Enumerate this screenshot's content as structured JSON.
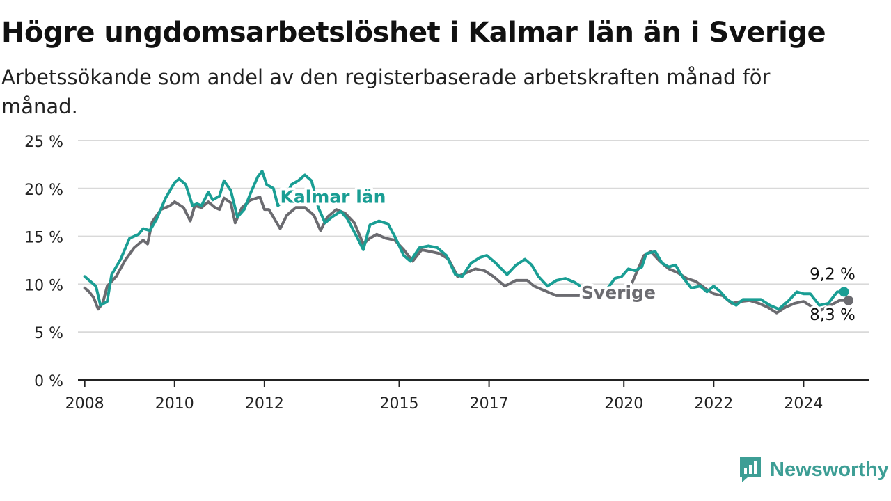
{
  "header": {
    "title": "Högre ungdomsarbetslöshet i Kalmar län än i Sverige",
    "subtitle": "Arbetssökande som andel av den registerbaserade arbetskraften månad för månad."
  },
  "brand": {
    "name": "Newsworthy",
    "icon": "newsworthy-chart-logo-icon",
    "color": "#3d9e95"
  },
  "chart_data": {
    "type": "line",
    "y_ticks": [
      "0 %",
      "5 %",
      "10 %",
      "15 %",
      "20 %",
      "25 %"
    ],
    "y_tick_values": [
      0,
      5,
      10,
      15,
      20,
      25
    ],
    "x_ticks": [
      "2008",
      "2010",
      "2012",
      "2015",
      "2017",
      "2020",
      "2022",
      "2024"
    ],
    "x_tick_values": [
      2008,
      2010,
      2012,
      2015,
      2017,
      2020,
      2022,
      2024
    ],
    "xlim": [
      2007.85,
      2025.45
    ],
    "ylim": [
      0,
      25
    ],
    "grid": true,
    "series": [
      {
        "name": "Sverige",
        "color": "#6b6b70",
        "end_label": "8,3 %",
        "label_x": 2019.05,
        "label_y": 8.5,
        "points": [
          [
            2008.0,
            9.6
          ],
          [
            2008.1,
            9.2
          ],
          [
            2008.2,
            8.6
          ],
          [
            2008.3,
            7.4
          ],
          [
            2008.4,
            8.0
          ],
          [
            2008.5,
            9.8
          ],
          [
            2008.7,
            10.8
          ],
          [
            2008.9,
            12.5
          ],
          [
            2009.1,
            13.8
          ],
          [
            2009.3,
            14.6
          ],
          [
            2009.4,
            14.2
          ],
          [
            2009.5,
            16.5
          ],
          [
            2009.7,
            17.8
          ],
          [
            2009.9,
            18.2
          ],
          [
            2010.0,
            18.6
          ],
          [
            2010.2,
            18.0
          ],
          [
            2010.35,
            16.6
          ],
          [
            2010.45,
            18.2
          ],
          [
            2010.6,
            18.0
          ],
          [
            2010.75,
            18.6
          ],
          [
            2010.9,
            18.0
          ],
          [
            2011.0,
            17.8
          ],
          [
            2011.1,
            19.0
          ],
          [
            2011.25,
            18.5
          ],
          [
            2011.35,
            16.4
          ],
          [
            2011.5,
            18.0
          ],
          [
            2011.7,
            18.8
          ],
          [
            2011.9,
            19.1
          ],
          [
            2012.0,
            17.8
          ],
          [
            2012.1,
            17.8
          ],
          [
            2012.2,
            17.0
          ],
          [
            2012.35,
            15.8
          ],
          [
            2012.5,
            17.2
          ],
          [
            2012.7,
            18.0
          ],
          [
            2012.9,
            18.0
          ],
          [
            2013.1,
            17.2
          ],
          [
            2013.25,
            15.6
          ],
          [
            2013.4,
            17.0
          ],
          [
            2013.6,
            17.8
          ],
          [
            2013.8,
            17.4
          ],
          [
            2014.0,
            16.4
          ],
          [
            2014.2,
            14.2
          ],
          [
            2014.35,
            14.8
          ],
          [
            2014.5,
            15.2
          ],
          [
            2014.7,
            14.8
          ],
          [
            2014.9,
            14.6
          ],
          [
            2015.1,
            13.6
          ],
          [
            2015.3,
            12.4
          ],
          [
            2015.5,
            13.6
          ],
          [
            2015.7,
            13.4
          ],
          [
            2015.9,
            13.2
          ],
          [
            2016.1,
            12.6
          ],
          [
            2016.3,
            10.8
          ],
          [
            2016.5,
            11.2
          ],
          [
            2016.7,
            11.6
          ],
          [
            2016.9,
            11.4
          ],
          [
            2017.1,
            10.8
          ],
          [
            2017.35,
            9.8
          ],
          [
            2017.6,
            10.4
          ],
          [
            2017.85,
            10.4
          ],
          [
            2018.0,
            9.8
          ],
          [
            2018.2,
            9.4
          ],
          [
            2018.5,
            8.8
          ],
          [
            2019.0,
            8.8
          ],
          [
            2019.5,
            9.0
          ],
          [
            2019.8,
            9.3
          ],
          [
            2020.0,
            9.4
          ],
          [
            2020.15,
            9.8
          ],
          [
            2020.3,
            11.4
          ],
          [
            2020.45,
            13.0
          ],
          [
            2020.6,
            13.4
          ],
          [
            2020.8,
            12.4
          ],
          [
            2021.0,
            11.6
          ],
          [
            2021.2,
            11.2
          ],
          [
            2021.4,
            10.6
          ],
          [
            2021.6,
            10.3
          ],
          [
            2021.8,
            9.6
          ],
          [
            2022.0,
            9.0
          ],
          [
            2022.2,
            8.8
          ],
          [
            2022.4,
            8.0
          ],
          [
            2022.6,
            8.2
          ],
          [
            2022.8,
            8.3
          ],
          [
            2023.0,
            8.0
          ],
          [
            2023.2,
            7.6
          ],
          [
            2023.4,
            7.0
          ],
          [
            2023.6,
            7.6
          ],
          [
            2023.8,
            8.0
          ],
          [
            2024.0,
            8.2
          ],
          [
            2024.2,
            7.6
          ],
          [
            2024.35,
            7.2
          ],
          [
            2024.6,
            7.8
          ],
          [
            2024.8,
            8.3
          ],
          [
            2025.0,
            8.3
          ]
        ]
      },
      {
        "name": "Kalmar län",
        "color": "#1a9e94",
        "end_label": "9,2 %",
        "label_x": 2012.35,
        "label_y": 18.5,
        "points": [
          [
            2008.0,
            10.8
          ],
          [
            2008.1,
            10.4
          ],
          [
            2008.25,
            9.8
          ],
          [
            2008.35,
            7.8
          ],
          [
            2008.5,
            8.2
          ],
          [
            2008.6,
            11.0
          ],
          [
            2008.8,
            12.6
          ],
          [
            2009.0,
            14.8
          ],
          [
            2009.2,
            15.2
          ],
          [
            2009.3,
            15.8
          ],
          [
            2009.45,
            15.6
          ],
          [
            2009.6,
            16.8
          ],
          [
            2009.8,
            19.0
          ],
          [
            2010.0,
            20.6
          ],
          [
            2010.1,
            21.0
          ],
          [
            2010.25,
            20.4
          ],
          [
            2010.4,
            18.2
          ],
          [
            2010.5,
            18.4
          ],
          [
            2010.6,
            18.2
          ],
          [
            2010.75,
            19.6
          ],
          [
            2010.85,
            18.8
          ],
          [
            2011.0,
            19.2
          ],
          [
            2011.1,
            20.8
          ],
          [
            2011.25,
            19.8
          ],
          [
            2011.4,
            17.0
          ],
          [
            2011.55,
            17.8
          ],
          [
            2011.7,
            19.6
          ],
          [
            2011.85,
            21.2
          ],
          [
            2011.95,
            21.8
          ],
          [
            2012.05,
            20.4
          ],
          [
            2012.2,
            20.0
          ],
          [
            2012.3,
            18.2
          ],
          [
            2012.45,
            18.8
          ],
          [
            2012.6,
            20.4
          ],
          [
            2012.75,
            20.8
          ],
          [
            2012.9,
            21.4
          ],
          [
            2013.05,
            20.8
          ],
          [
            2013.2,
            18.0
          ],
          [
            2013.35,
            16.4
          ],
          [
            2013.5,
            17.0
          ],
          [
            2013.7,
            17.6
          ],
          [
            2013.85,
            16.8
          ],
          [
            2014.05,
            15.0
          ],
          [
            2014.2,
            13.6
          ],
          [
            2014.35,
            16.2
          ],
          [
            2014.55,
            16.6
          ],
          [
            2014.75,
            16.3
          ],
          [
            2014.9,
            15.0
          ],
          [
            2015.1,
            13.0
          ],
          [
            2015.25,
            12.4
          ],
          [
            2015.45,
            13.8
          ],
          [
            2015.65,
            14.0
          ],
          [
            2015.85,
            13.8
          ],
          [
            2016.05,
            13.0
          ],
          [
            2016.25,
            11.0
          ],
          [
            2016.4,
            10.8
          ],
          [
            2016.6,
            12.2
          ],
          [
            2016.8,
            12.8
          ],
          [
            2016.95,
            13.0
          ],
          [
            2017.15,
            12.2
          ],
          [
            2017.4,
            11.0
          ],
          [
            2017.6,
            12.0
          ],
          [
            2017.8,
            12.6
          ],
          [
            2017.95,
            12.0
          ],
          [
            2018.1,
            10.8
          ],
          [
            2018.3,
            9.8
          ],
          [
            2018.5,
            10.4
          ],
          [
            2018.7,
            10.6
          ],
          [
            2018.9,
            10.2
          ],
          [
            2019.1,
            9.6
          ],
          [
            2019.3,
            9.2
          ],
          [
            2019.55,
            9.0
          ],
          [
            2019.8,
            10.6
          ],
          [
            2019.95,
            10.8
          ],
          [
            2020.1,
            11.6
          ],
          [
            2020.25,
            11.4
          ],
          [
            2020.4,
            11.8
          ],
          [
            2020.5,
            13.2
          ],
          [
            2020.7,
            13.4
          ],
          [
            2020.85,
            12.2
          ],
          [
            2021.0,
            11.8
          ],
          [
            2021.15,
            12.0
          ],
          [
            2021.3,
            10.8
          ],
          [
            2021.5,
            9.6
          ],
          [
            2021.7,
            9.8
          ],
          [
            2021.85,
            9.2
          ],
          [
            2022.0,
            9.8
          ],
          [
            2022.15,
            9.2
          ],
          [
            2022.3,
            8.4
          ],
          [
            2022.5,
            7.8
          ],
          [
            2022.65,
            8.4
          ],
          [
            2022.85,
            8.4
          ],
          [
            2023.05,
            8.4
          ],
          [
            2023.25,
            7.8
          ],
          [
            2023.45,
            7.4
          ],
          [
            2023.65,
            8.2
          ],
          [
            2023.85,
            9.2
          ],
          [
            2024.0,
            9.0
          ],
          [
            2024.15,
            9.0
          ],
          [
            2024.35,
            7.8
          ],
          [
            2024.55,
            8.0
          ],
          [
            2024.75,
            9.2
          ],
          [
            2024.9,
            9.2
          ]
        ]
      }
    ]
  }
}
